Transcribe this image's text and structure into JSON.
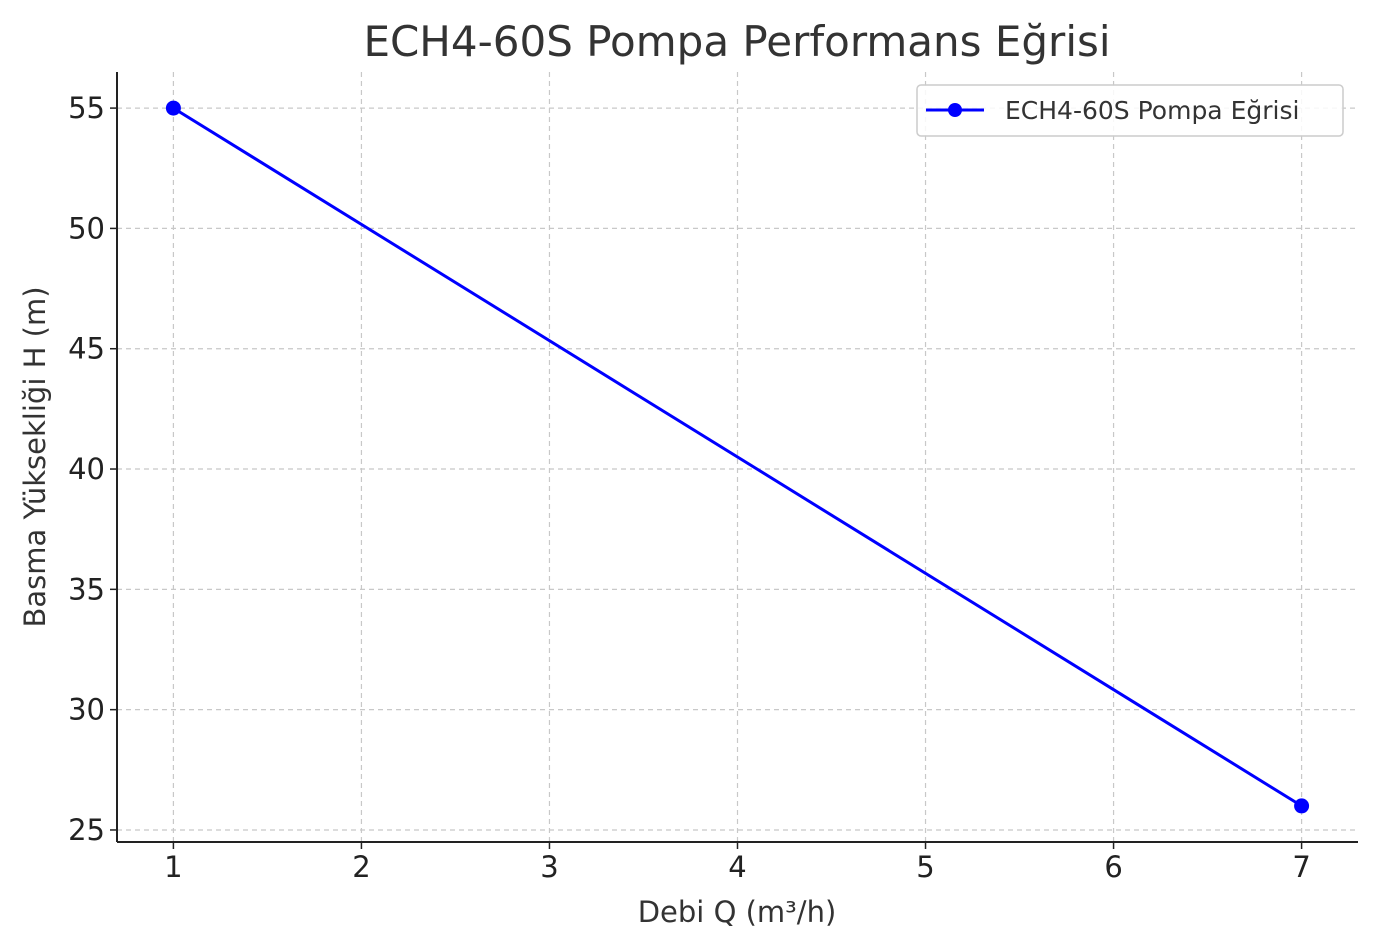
{
  "chart_data": {
    "type": "line",
    "title": "ECH4-60S Pompa Performans Eğrisi",
    "xlabel": "Debi Q (m³/h)",
    "ylabel": "Basma Yüksekliği H (m)",
    "x_ticks": [
      "1",
      "2",
      "3",
      "4",
      "5",
      "6",
      "7"
    ],
    "y_ticks": [
      "25",
      "30",
      "35",
      "40",
      "45",
      "50",
      "55"
    ],
    "x_tick_values": [
      1,
      2,
      3,
      4,
      5,
      6,
      7
    ],
    "y_tick_values": [
      25,
      30,
      35,
      40,
      45,
      50,
      55
    ],
    "xlim": [
      0.7,
      7.3
    ],
    "ylim": [
      24.5,
      56.5
    ],
    "grid": true,
    "legend_position": "top-right",
    "series": [
      {
        "name": "ECH4-60S Pompa Eğrisi",
        "x": [
          1,
          7
        ],
        "y": [
          55,
          26
        ],
        "color": "#0000ff",
        "marker": "circle"
      }
    ]
  }
}
